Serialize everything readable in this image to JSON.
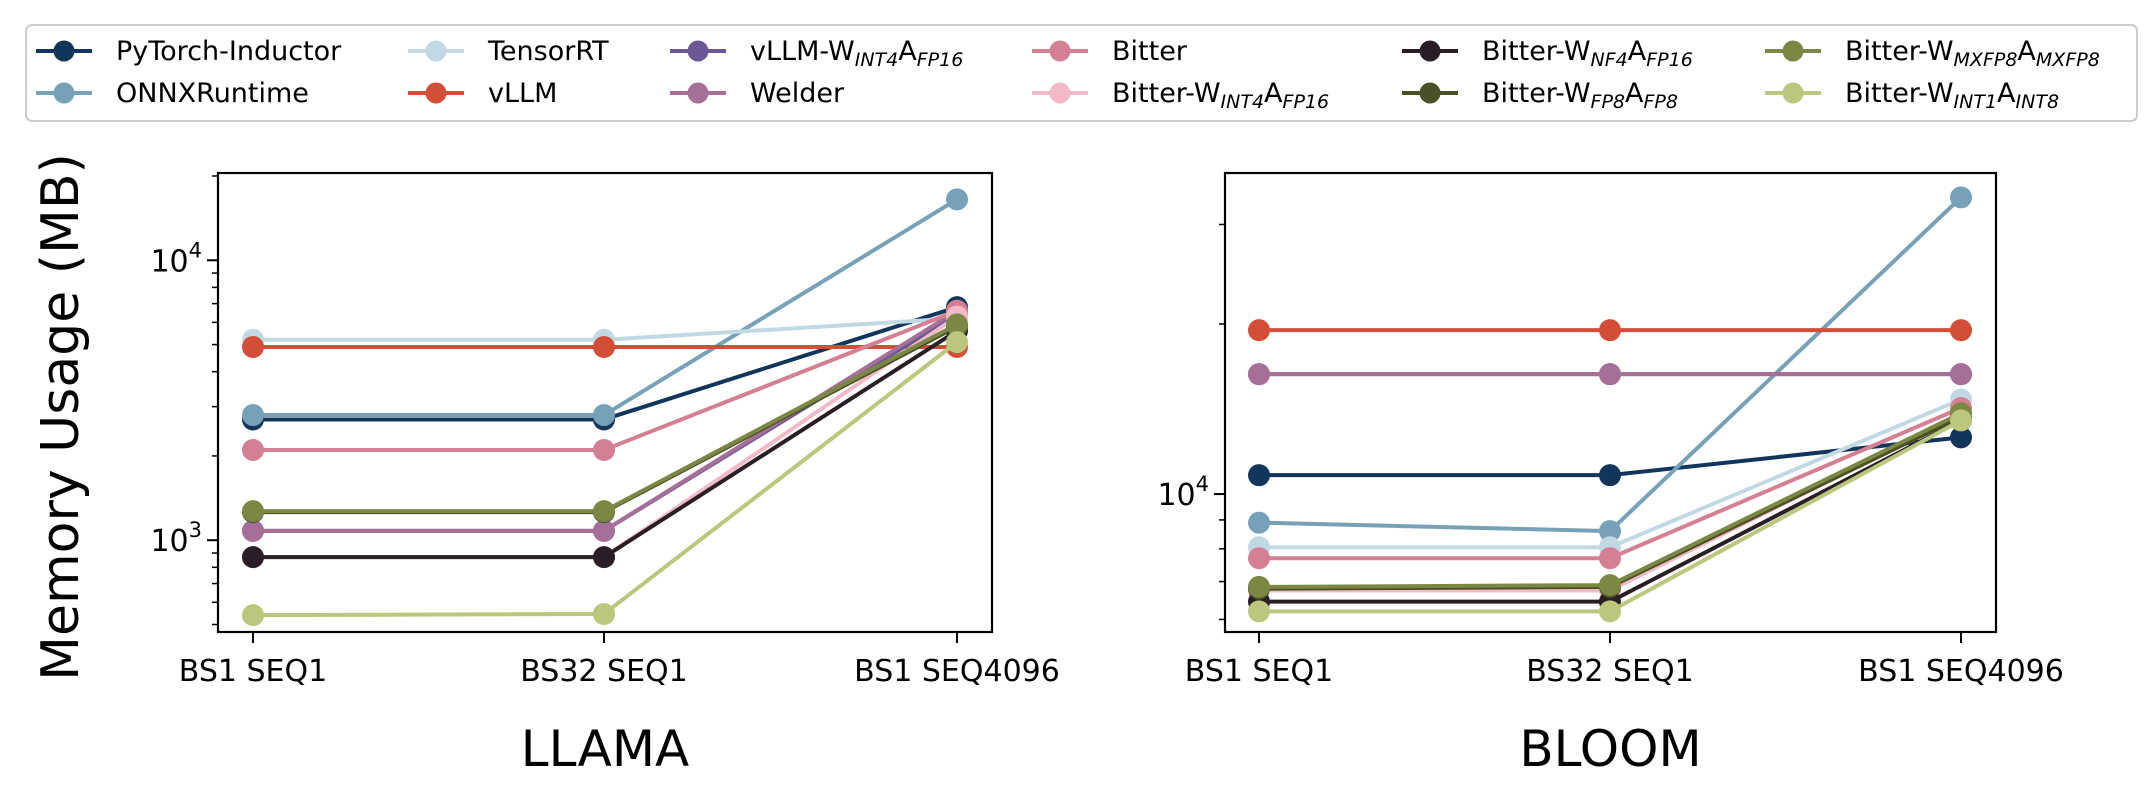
{
  "ylabel": "Memory Usage (MB)",
  "legend": [
    {
      "name": "PyTorch-Inductor",
      "base": "PyTorch-Inductor",
      "color": "#12355b"
    },
    {
      "name": "ONNXRuntime",
      "base": "ONNXRuntime",
      "color": "#77a1b8"
    },
    {
      "name": "TensorRT",
      "base": "TensorRT",
      "color": "#c1d9e3"
    },
    {
      "name": "vLLM",
      "base": "vLLM",
      "color": "#d44e37"
    },
    {
      "name": "vLLM-W_INT4 A_FP16",
      "base": "vLLM-W",
      "sub1": "INT4",
      "mid": "A",
      "sub2": "FP16",
      "color": "#6c5895"
    },
    {
      "name": "Welder",
      "base": "Welder",
      "color": "#a66f98"
    },
    {
      "name": "Bitter",
      "base": "Bitter",
      "color": "#d47f93"
    },
    {
      "name": "Bitter-W_INT4 A_FP16",
      "base": "Bitter-W",
      "sub1": "INT4",
      "mid": "A",
      "sub2": "FP16",
      "color": "#f2bac8"
    },
    {
      "name": "Bitter-W_NF4 A_FP16",
      "base": "Bitter-W",
      "sub1": "NF4",
      "mid": "A",
      "sub2": "FP16",
      "color": "#2a1e26"
    },
    {
      "name": "Bitter-W_FP8 A_FP8",
      "base": "Bitter-W",
      "sub1": "FP8",
      "mid": "A",
      "sub2": "FP8",
      "color": "#4a4f26"
    },
    {
      "name": "Bitter-W_MXFP8 A_MXFP8",
      "base": "Bitter-W",
      "sub1": "MXFP8",
      "mid": "A",
      "sub2": "MXFP8",
      "color": "#7a8844"
    },
    {
      "name": "Bitter-W_INT1 A_INT8",
      "base": "Bitter-W",
      "sub1": "INT1",
      "mid": "A",
      "sub2": "INT8",
      "color": "#bcc67c"
    }
  ],
  "chart_data": [
    {
      "type": "line",
      "title": "LLAMA",
      "xlabel": "LLAMA",
      "ylabel": "Memory Usage (MB)",
      "yscale": "log",
      "ylim": [
        470,
        20500
      ],
      "yticks": [
        {
          "value": 1000,
          "base": "10",
          "exp": "3"
        },
        {
          "value": 10000,
          "base": "10",
          "exp": "4"
        }
      ],
      "categories": [
        "BS1 SEQ1",
        "BS32 SEQ1",
        "BS1 SEQ4096"
      ],
      "series": [
        {
          "name": "PyTorch-Inductor",
          "values": [
            2700,
            2700,
            6800
          ]
        },
        {
          "name": "ONNXRuntime",
          "values": [
            2800,
            2800,
            16500
          ]
        },
        {
          "name": "TensorRT",
          "values": [
            5200,
            5200,
            6200
          ]
        },
        {
          "name": "vLLM",
          "values": [
            4900,
            4900,
            4900
          ]
        },
        {
          "name": "vLLM-W_INT4 A_FP16",
          "values": [
            1080,
            1080,
            6400
          ]
        },
        {
          "name": "Welder",
          "values": [
            1080,
            1080,
            6600
          ]
        },
        {
          "name": "Bitter",
          "values": [
            2100,
            2100,
            6600
          ]
        },
        {
          "name": "Bitter-W_INT4 A_FP16",
          "values": [
            870,
            870,
            6300
          ]
        },
        {
          "name": "Bitter-W_NF4 A_FP16",
          "values": [
            870,
            870,
            5600
          ]
        },
        {
          "name": "Bitter-W_FP8 A_FP8",
          "values": [
            1260,
            1260,
            5800
          ]
        },
        {
          "name": "Bitter-W_MXFP8 A_MXFP8",
          "values": [
            1270,
            1270,
            5900
          ]
        },
        {
          "name": "Bitter-W_INT1 A_INT8",
          "values": [
            540,
            545,
            5100
          ]
        }
      ]
    },
    {
      "type": "line",
      "title": "BLOOM",
      "xlabel": "BLOOM",
      "ylabel": "",
      "yscale": "log",
      "ylim": [
        5700,
        37000
      ],
      "yticks": [
        {
          "value": 10000,
          "base": "10",
          "exp": "4"
        }
      ],
      "categories": [
        "BS1 SEQ1",
        "BS32 SEQ1",
        "BS1 SEQ4096"
      ],
      "series": [
        {
          "name": "PyTorch-Inductor",
          "values": [
            10800,
            10800,
            12600
          ]
        },
        {
          "name": "ONNXRuntime",
          "values": [
            8900,
            8600,
            33500
          ]
        },
        {
          "name": "TensorRT",
          "values": [
            8050,
            8050,
            14700
          ]
        },
        {
          "name": "vLLM",
          "values": [
            19500,
            19500,
            19500
          ]
        },
        {
          "name": "vLLM-W_INT4 A_FP16",
          "values": [
            16300,
            16300,
            16300
          ]
        },
        {
          "name": "Welder",
          "values": [
            16300,
            16300,
            16300
          ]
        },
        {
          "name": "Bitter",
          "values": [
            7700,
            7700,
            14200
          ]
        },
        {
          "name": "Bitter-W_INT4 A_FP16",
          "values": [
            6750,
            6750,
            13800
          ]
        },
        {
          "name": "Bitter-W_NF4 A_FP16",
          "values": [
            6450,
            6450,
            13500
          ]
        },
        {
          "name": "Bitter-W_FP8 A_FP8",
          "values": [
            6800,
            6850,
            13700
          ]
        },
        {
          "name": "Bitter-W_MXFP8 A_MXFP8",
          "values": [
            6850,
            6900,
            13900
          ]
        },
        {
          "name": "Bitter-W_INT1 A_INT8",
          "values": [
            6200,
            6200,
            13500
          ]
        }
      ]
    }
  ]
}
